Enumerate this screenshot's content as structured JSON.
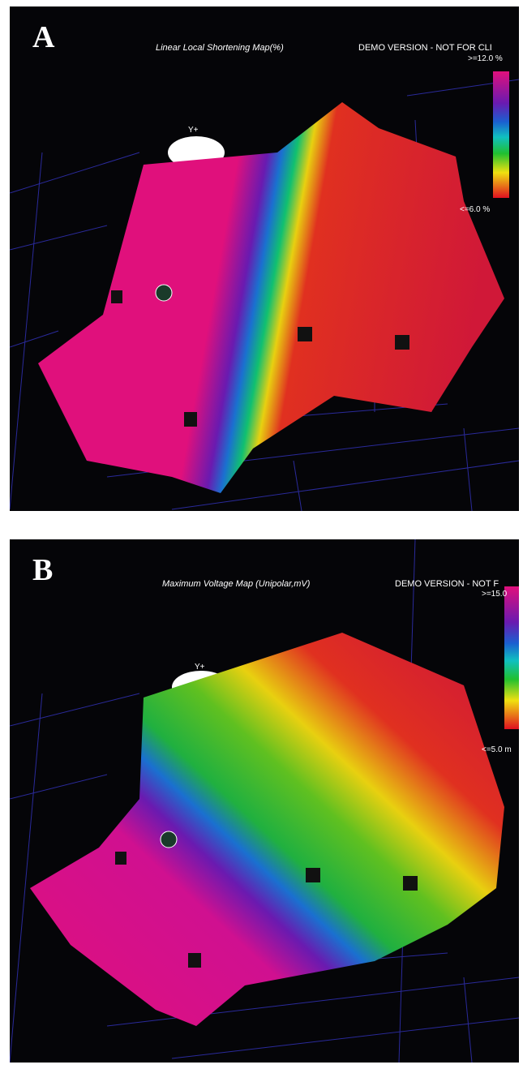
{
  "panels": [
    {
      "label": "A",
      "title": "Linear Local Shortening Map(%)",
      "watermark": "DEMO VERSION - NOT FOR CLI",
      "scale_max": ">=12.0 %",
      "scale_min": "<=6.0 %",
      "axis_label": "Y+"
    },
    {
      "label": "B",
      "title": "Maximum Voltage Map (Unipolar,mV)",
      "watermark": "DEMO VERSION - NOT F",
      "scale_max": ">=15.0",
      "scale_min": "<=5.0 m",
      "axis_label": "Y+"
    }
  ]
}
